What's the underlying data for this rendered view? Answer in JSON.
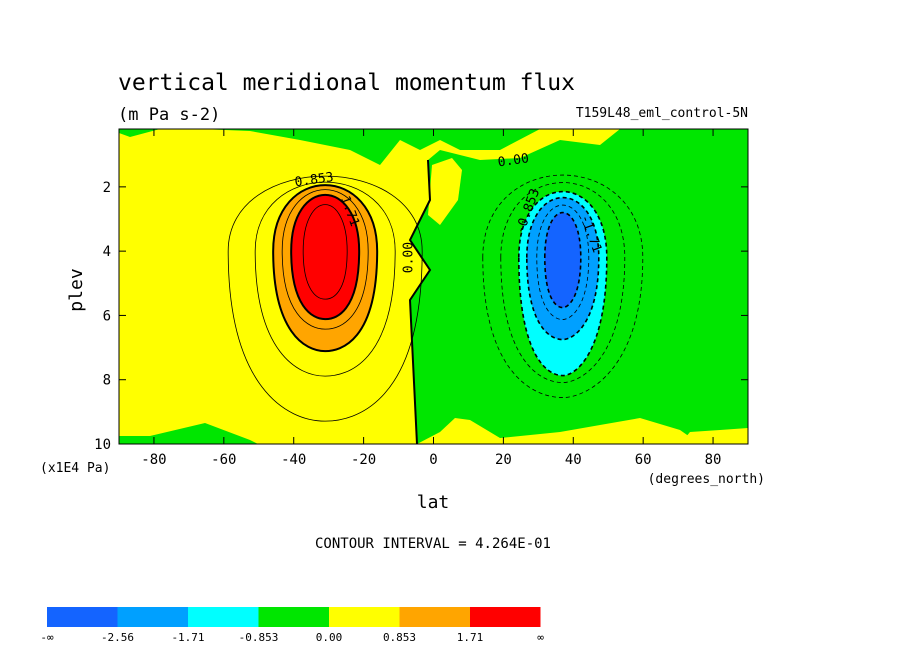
{
  "chart_data": {
    "type": "contour",
    "title": "vertical meridional momentum flux",
    "subtitle": "(m Pa s-2)",
    "run_label": "T159L48_eml_control-5N",
    "xlabel": "lat",
    "ylabel": "plev",
    "x_units": "(degrees_north)",
    "y_units": "(x1E4 Pa)",
    "xlim": [
      -90,
      90
    ],
    "ylim": [
      10,
      0.2
    ],
    "x_ticks": [
      -80,
      -60,
      -40,
      -20,
      0,
      20,
      40,
      60,
      80
    ],
    "x_tick_labels": [
      "-80",
      "-60",
      "-40",
      "-20",
      "0",
      "20",
      "40",
      "60",
      "80"
    ],
    "y_ticks": [
      2,
      4,
      6,
      8,
      10
    ],
    "y_tick_labels": [
      "2",
      "4",
      "6",
      "8",
      "10"
    ],
    "contour_interval_text": "CONTOUR INTERVAL = 4.264E-01",
    "contour_labels": [
      {
        "text": "0.853",
        "lat": -34,
        "plev": 1.9
      },
      {
        "text": "1.71",
        "lat": -25,
        "plev": 2.8
      },
      {
        "text": "0.00",
        "lat": -6,
        "plev": 4.2
      },
      {
        "text": "0.00",
        "lat": 23,
        "plev": 1.3
      },
      {
        "text": "-0.853",
        "lat": 28,
        "plev": 2.8
      },
      {
        "text": "-1.71",
        "lat": 44,
        "plev": 3.5
      }
    ],
    "features": [
      {
        "name": "positive-maximum",
        "lat": -31,
        "plev": 4.0,
        "peak": 2.6
      },
      {
        "name": "negative-minimum",
        "lat": 37,
        "plev": 4.2,
        "peak": -2.7
      }
    ],
    "levels": [
      -2.56,
      -1.71,
      -0.853,
      0.0,
      0.853,
      1.71
    ],
    "colorbar": {
      "colors": [
        "#1464ff",
        "#00a0ff",
        "#00ffff",
        "#00e600",
        "#ffff00",
        "#ffa500",
        "#ff0000"
      ],
      "labels": [
        "-∞",
        "-2.56",
        "-1.71",
        "-0.853",
        "0.00",
        "0.853",
        "1.71",
        "∞"
      ]
    }
  }
}
